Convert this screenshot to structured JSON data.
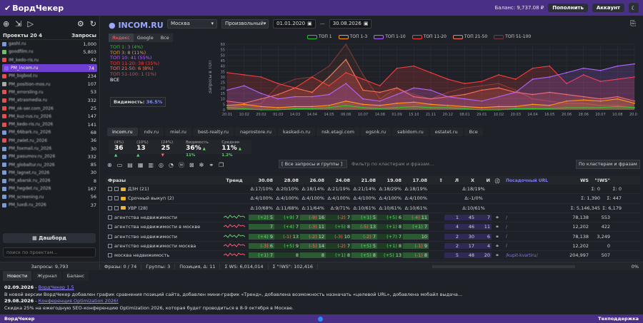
{
  "app": {
    "title": "ВордЧекер",
    "balance_label": "Баланс: 9,737.08 ₽",
    "topup": "Пополнить",
    "account": "Аккаунт"
  },
  "sidebar": {
    "projects_label": "Проекты 20 4",
    "queries_label": "Запросы",
    "projects": [
      {
        "name": "gashl.ru",
        "value": "1,000",
        "color": "#7a9bd8"
      },
      {
        "name": "goodfilm.ru",
        "value": "5,803",
        "color": "#6dbf6d"
      },
      {
        "name": "IM_kedo-ris.ru",
        "value": "42",
        "color": "#e05050"
      },
      {
        "name": "PM_incom.ru",
        "value": "74",
        "color": "#8e5cf0",
        "selected": true
      },
      {
        "name": "PM_bigbod.ru",
        "value": "234",
        "color": "#e05050"
      },
      {
        "name": "PM_position-mos.ru",
        "value": "107",
        "color": "#aaaaaa"
      },
      {
        "name": "PM_errorsling.ru",
        "value": "53",
        "color": "#e05050"
      },
      {
        "name": "PM_atrasmedia.ru",
        "value": "332",
        "color": "#e05050"
      },
      {
        "name": "PM_ok-ser.com_2026",
        "value": "25",
        "color": "#e05050"
      },
      {
        "name": "PM_kuz-rus.ru_2026",
        "value": "147",
        "color": "#e05050"
      },
      {
        "name": "PM_kedo-ris.ru_2026",
        "value": "141",
        "color": "#e05050"
      },
      {
        "name": "PM_66bark.ru_2026",
        "value": "68",
        "color": "#7a9bd8"
      },
      {
        "name": "PM_zwlet.ru_2026",
        "value": "36",
        "color": "#e05050"
      },
      {
        "name": "PM_foxmail.ru_2026",
        "value": "30",
        "color": "#7a9bd8"
      },
      {
        "name": "PM_pasumov.ru_2026",
        "value": "332",
        "color": "#7a9bd8"
      },
      {
        "name": "PM_globaltur.ru_2026",
        "value": "85",
        "color": "#7a9bd8"
      },
      {
        "name": "PM_lagnet.ru_2026",
        "value": "30",
        "color": "#7a9bd8"
      },
      {
        "name": "PM_abarsk.ru_2026",
        "value": "8",
        "color": "#7a9bd8"
      },
      {
        "name": "PM_hegdet.ru_2026",
        "value": "167",
        "color": "#7a9bd8"
      },
      {
        "name": "PM_screening.ru",
        "value": "56",
        "color": "#7a9bd8"
      },
      {
        "name": "PM_luxdi.ru_2026",
        "value": "37",
        "color": "#7a9bd8"
      }
    ],
    "dashboard": "Дашборд",
    "search_placeholder": "поиск по проектам…"
  },
  "toolbar": {
    "region": "Москва",
    "period": "Произвольный",
    "date_from": "01.01.2020",
    "date_to": "30.08.2026"
  },
  "legend": [
    {
      "label": "ТОП 1",
      "color": "#2ec42e"
    },
    {
      "label": "ТОП 1-3",
      "color": "#ff9a1a"
    },
    {
      "label": "ТОП 1-10",
      "color": "#b366ff"
    },
    {
      "label": "ТОП 11-20",
      "color": "#ff3b3b"
    },
    {
      "label": "ТОП 21-50",
      "color": "#ff7b5c"
    },
    {
      "label": "ТОП 51-100",
      "color": "#7a3a3a"
    }
  ],
  "project": {
    "domain": "INCOM.RU",
    "engines": [
      "Яндекс",
      "Google",
      "Все"
    ],
    "queries_label": "Запросы в ТОП",
    "stats": [
      {
        "label": "ТОП 1: 3 (4%)",
        "color": "#2ec42e"
      },
      {
        "label": "ТОП 3: 8 (11%)",
        "color": "#ff9a1a"
      },
      {
        "label": "ТОП 10: 41 (55%)",
        "color": "#b366ff"
      },
      {
        "label": "ТОП 11-20: 38 (35%)",
        "color": "#ff3b3b"
      },
      {
        "label": "ТОП 21-50: 6 (8%)",
        "color": "#ff7b5c"
      },
      {
        "label": "ТОП 51-100: 1 (1%)",
        "color": "#b06060"
      },
      {
        "label": "ВСЕ",
        "color": "#ffffff"
      }
    ],
    "visibility_label": "Видимость:",
    "visibility": "36.5%"
  },
  "chart_data": {
    "type": "area",
    "ylabel": "Запросы в ТОП",
    "ylim": [
      0,
      60
    ],
    "yticks": [
      0,
      5,
      10,
      15,
      20,
      25,
      30,
      35,
      40,
      45,
      50,
      55,
      60
    ],
    "x": [
      "20.01",
      "10.02",
      "20.02",
      "01.03",
      "14.03",
      "14.04",
      "14.05",
      "06.06",
      "10.07",
      "14.08",
      "01.09",
      "15.10",
      "21.11",
      "20.12",
      "08.01",
      "29.01",
      "10.02",
      "20.03",
      "14.04",
      "16.05",
      "20.06",
      "28.06",
      "20.07",
      "10.08",
      "20.08"
    ],
    "series": [
      {
        "name": "ТОП 1",
        "values": [
          2,
          1,
          0,
          0,
          1,
          1,
          2,
          4,
          2,
          1,
          2,
          3,
          2,
          2,
          1,
          0,
          0,
          1,
          1,
          1,
          2,
          2,
          2,
          3,
          2
        ]
      },
      {
        "name": "ТОП 1-3",
        "values": [
          4,
          5,
          3,
          2,
          3,
          3,
          4,
          8,
          5,
          4,
          6,
          7,
          5,
          4,
          3,
          2,
          3,
          3,
          5,
          4,
          8,
          9,
          8,
          10,
          6
        ]
      },
      {
        "name": "ТОП 1-10",
        "values": [
          18,
          22,
          15,
          10,
          12,
          12,
          14,
          24,
          10,
          8,
          14,
          20,
          18,
          12,
          10,
          8,
          12,
          16,
          28,
          30,
          34,
          38,
          36,
          40,
          42
        ]
      },
      {
        "name": "ТОП 11-20",
        "values": [
          34,
          32,
          30,
          24,
          20,
          30,
          22,
          34,
          28,
          22,
          38,
          40,
          34,
          28,
          24,
          26,
          32,
          28,
          38,
          40,
          24,
          32,
          26,
          28,
          30
        ]
      },
      {
        "name": "ТОП 21-50",
        "values": [
          8,
          6,
          10,
          14,
          20,
          16,
          30,
          46,
          18,
          16,
          20,
          12,
          10,
          12,
          14,
          18,
          20,
          16,
          14,
          16,
          14,
          12,
          10,
          12,
          8
        ]
      },
      {
        "name": "ТОП 51-100",
        "values": [
          2,
          4,
          6,
          22,
          28,
          30,
          40,
          60,
          32,
          10,
          20,
          14,
          10,
          16,
          20,
          22,
          24,
          18,
          10,
          8,
          6,
          6,
          4,
          4,
          2
        ]
      }
    ]
  },
  "competitors": [
    "incom.ru",
    "ndv.ru",
    "miel.ru",
    "best-realty.ru",
    "naprostore.ru",
    "kaskad-n.ru",
    "nsk.etagi.com",
    "egsnk.ru",
    "sabidom.ru",
    "estatet.ru",
    "Все"
  ],
  "kpis": [
    {
      "label": "(4%)",
      "value": "36",
      "delta": "▲"
    },
    {
      "label": "(10%)",
      "value": "13",
      "delta": "▲"
    },
    {
      "label": "(24%)",
      "value": "25",
      "delta": "▼"
    },
    {
      "label": "Видимость",
      "value": "36%",
      "delta": "▲ 11%"
    },
    {
      "label": "Средняя",
      "value": "11%",
      "delta": "▲ 1.2%"
    }
  ],
  "grid": {
    "groups_select": "[ Все запросы и группы ]",
    "filter_placeholder": "Фильтр по кластерам и фразам…",
    "cluster_select": "По кластерам и фразам",
    "headers": [
      "Фразы",
      "Тренд",
      "30.08",
      "28.08",
      "26.08",
      "24.08",
      "21.08",
      "19.08",
      "17.08",
      "Л",
      "Х",
      "И",
      "Посадочный URL",
      "WS",
      "\"!WS\""
    ],
    "rows": [
      {
        "type": "group",
        "name": "ДЗН (21)",
        "d": [
          "Δ:17/10%",
          "Δ:20/10%",
          "Δ:18/14%",
          "Δ:21/19%",
          "Δ:21/14%",
          "Δ:18/29%",
          "Δ:18/19%"
        ],
        "sub": "Δ:18/19%",
        "ws": "Σ: 0",
        "iws": "Σ: 0"
      },
      {
        "type": "group",
        "name": "Срочный выкуп (2)",
        "d": [
          "Δ:4/100%",
          "Δ:4/100%",
          "Δ:4/100%",
          "Δ:4/100%",
          "Δ:4/100%",
          "Δ:4/100%",
          "Δ:4/100%"
        ],
        "sub": "Δ:-1/0%",
        "ws": "Σ: 1,390",
        "iws": "Σ: 447"
      },
      {
        "type": "group",
        "name": "УВР (28)",
        "d": [
          "Δ:10/68%",
          "Δ:11/68%",
          "Δ:11/64%",
          "Δ:9/71%",
          "Δ:10/61%",
          "Δ:10/61%",
          "Δ:10/61%"
        ],
        "sub": "Δ:10/61%",
        "ws": "Σ: 5,146,345",
        "iws": "Σ: 6,179"
      },
      {
        "type": "row",
        "name": "агентства недвижимости",
        "d": [
          [
            "(+2)",
            "5"
          ],
          [
            "(+9)",
            "7"
          ],
          [
            "(-9)",
            "16"
          ],
          [
            "(-2)",
            "7"
          ],
          [
            "(+1)",
            "5"
          ],
          [
            "(+5)",
            "6"
          ],
          [
            "(-4)",
            "11"
          ]
        ],
        "l": "1",
        "x": "45",
        "i": "7",
        "url": "/",
        "ws": "78,138",
        "iws": "553"
      },
      {
        "type": "row",
        "name": "агентства недвижимости в москве",
        "d": [
          [
            "",
            "7"
          ],
          [
            "(+4)",
            "7"
          ],
          [
            "(-3)",
            "11"
          ],
          [
            "(+5)",
            "8"
          ],
          [
            "(-5)",
            "13"
          ],
          [
            "(+1)",
            "8"
          ],
          [
            "(+1)",
            "7"
          ]
        ],
        "l": "4",
        "x": "46",
        "i": "11",
        "url": "/",
        "ws": "12,202",
        "iws": "422"
      },
      {
        "type": "row",
        "name": "агентство недвижимости",
        "d": [
          [
            "(+4)",
            "9"
          ],
          [
            "(-1)",
            "13"
          ],
          [
            "(-2)",
            "12"
          ],
          [
            "(-3)",
            "10"
          ],
          [
            "(-2)",
            "7"
          ],
          [
            "(+7)",
            "7"
          ],
          [
            "",
            "10"
          ]
        ],
        "l": "2",
        "x": "30",
        "i": "6",
        "url": "/",
        "ws": "78,138",
        "iws": "3,249"
      },
      {
        "type": "row",
        "name": "агентство недвижимости москва",
        "d": [
          [
            "(-3)",
            "6"
          ],
          [
            "(+5)",
            "9"
          ],
          [
            "(-5)",
            "14"
          ],
          [
            "(-2)",
            "7"
          ],
          [
            "(+5)",
            "5"
          ],
          [
            "(+1)",
            "8"
          ],
          [
            "(-1)",
            "9"
          ]
        ],
        "l": "2",
        "x": "17",
        "i": "4",
        "url": "/",
        "ws": "12,202",
        "iws": "0"
      },
      {
        "type": "row",
        "name": "москва недвижимость",
        "d": [
          [
            "(+1)",
            "7"
          ],
          [
            "",
            "8"
          ],
          [
            "",
            "8"
          ],
          [
            "(+1)",
            "8"
          ],
          [
            "(+5)",
            "8"
          ],
          [
            "(+5)",
            "13"
          ],
          [
            "(-1)",
            "8"
          ]
        ],
        "l": "5",
        "x": "48",
        "i": "20",
        "url": "/kupit-kvartiru/",
        "ws": "204,997",
        "iws": "507"
      }
    ]
  },
  "statusbar": [
    "Запросы: 9,793",
    "Фразы: 0 / 74",
    "Группы: 3",
    "Позиция, Δ: 11",
    "Σ WS: 6,014,014",
    "Σ \"!WS\": 102,416",
    "0%"
  ],
  "bottom_tabs": [
    "Новости",
    "Журнал",
    "Баланс"
  ],
  "news": [
    {
      "date": "02.09.2026",
      "link": "ВордЧекер 1.5",
      "text": "В новой версии ВордЧекер добавлен график сравнения позиций сайта, добавлен мини-график «Тренд», добавлена возможность назначать «целевой URL», добавлена мобайл выдача..."
    },
    {
      "date": "29.08.2026",
      "link": "Конференция Optimization 2026!",
      "text": "Скидка 25% на ежегодную SEO-конференцию Optimization 2026, которая будет проводиться в 8-9 октября в Москве."
    }
  ],
  "footer": {
    "left": "ВордЧекер",
    "right": "Техподдержка"
  }
}
